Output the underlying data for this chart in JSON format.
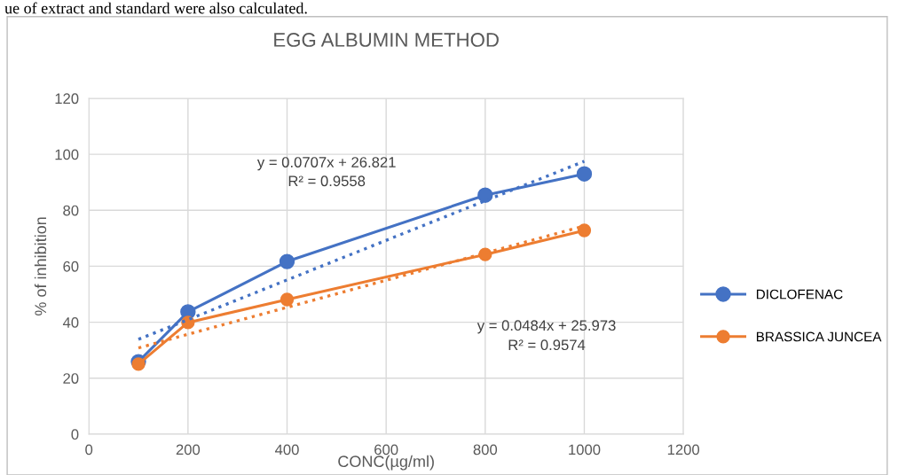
{
  "chart_data": {
    "type": "line",
    "title": "EGG ALBUMIN METHOD",
    "xlabel": "CONC(µg/ml)",
    "ylabel": "% of inhibition",
    "x": [
      100,
      200,
      400,
      800,
      1000
    ],
    "series": [
      {
        "name": "DICLOFENAC",
        "color": "#4472c4",
        "values": [
          25.9,
          43.7,
          61.7,
          85.4,
          93.0
        ]
      },
      {
        "name": "BRASSICA JUNCEA",
        "color": "#ed7d31",
        "values": [
          25.0,
          39.9,
          48.1,
          64.2,
          72.8
        ]
      },
      {
        "color": "#4472c4",
        "x": [
          100,
          200,
          400,
          800,
          1000
        ],
        "values": [
          33.9,
          40.9,
          55.1,
          83.4,
          97.5
        ],
        "line_style": "dotted",
        "marker": "none"
      },
      {
        "color": "#ed7d31",
        "x": [
          100,
          200,
          400,
          800,
          1000
        ],
        "values": [
          30.8,
          35.7,
          45.3,
          64.7,
          74.4
        ],
        "line_style": "dotted",
        "marker": "none"
      }
    ],
    "xlim": [
      0,
      1200
    ],
    "xticks": [
      0,
      200,
      400,
      600,
      800,
      1000,
      1200
    ],
    "ylim": [
      0,
      120
    ],
    "yticks": [
      0,
      20,
      40,
      60,
      80,
      100,
      120
    ],
    "grid": true,
    "legend": "right",
    "marker": "circle",
    "line_style": "solid",
    "annotations": [
      "y = 0.0707x + 26.821",
      "R² = 0.9558",
      "y = 0.0484x + 25.973",
      "R² = 0.9574",
      "ue of extract and standard were also calculated."
    ]
  }
}
